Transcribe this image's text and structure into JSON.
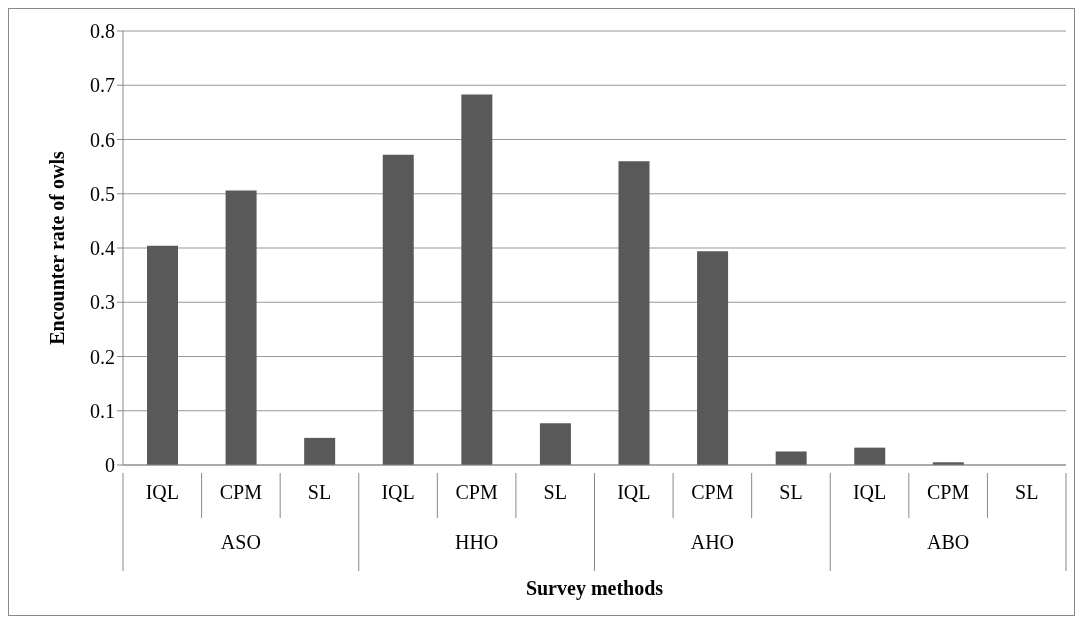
{
  "chart_data": {
    "type": "bar",
    "xlabel": "Survey methods",
    "ylabel": "Encounter rate of owls",
    "categories": [
      "IQL",
      "CPM",
      "SL",
      "IQL",
      "CPM",
      "SL",
      "IQL",
      "CPM",
      "SL",
      "IQL",
      "CPM",
      "SL"
    ],
    "values": [
      0.404,
      0.506,
      0.05,
      0.572,
      0.683,
      0.077,
      0.56,
      0.394,
      0.025,
      0.032,
      0.005,
      0
    ],
    "color": "#595959",
    "ylim": [
      0,
      0.8
    ],
    "yticks": [
      0,
      0.1,
      0.2,
      0.3,
      0.4,
      0.5,
      0.6,
      0.7,
      0.8
    ],
    "grid": "y",
    "annotations": [
      "ASO",
      "HHO",
      "AHO",
      "ABO"
    ]
  }
}
